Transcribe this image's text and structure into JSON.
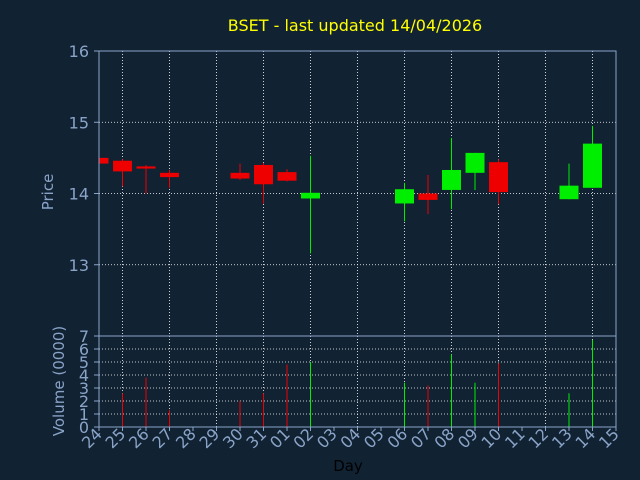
{
  "chart_data": {
    "type": "candlestick",
    "title": "BSET - last updated 14/04/2026",
    "price_panel": {
      "ylabel": "Price",
      "ylim": [
        12.0,
        16.0
      ],
      "yticks": [
        "13",
        "14",
        "15",
        "16"
      ],
      "grid": true
    },
    "volume_panel": {
      "ylabel": "Volume (0000)",
      "ylim": [
        0,
        7
      ],
      "yticks": [
        "0",
        "1",
        "2",
        "3",
        "4",
        "5",
        "6",
        "7"
      ],
      "grid": true
    },
    "xlabel": "Day",
    "x_ticks": [
      "24",
      "25",
      "26",
      "27",
      "28",
      "29",
      "30",
      "31",
      "01",
      "02",
      "03",
      "04",
      "05",
      "06",
      "07",
      "08",
      "09",
      "10",
      "11",
      "12",
      "13",
      "14",
      "15"
    ],
    "candles": [
      {
        "day": "24",
        "open": 14.5,
        "high": 14.52,
        "low": 14.42,
        "close": 14.42,
        "volume": 0
      },
      {
        "day": "25",
        "open": 14.46,
        "high": 14.48,
        "low": 14.1,
        "close": 14.31,
        "volume": 2.6
      },
      {
        "day": "26",
        "open": 14.38,
        "high": 14.4,
        "low": 14.0,
        "close": 14.35,
        "volume": 3.8
      },
      {
        "day": "27",
        "open": 14.29,
        "high": 14.33,
        "low": 14.08,
        "close": 14.23,
        "volume": 1.3
      },
      {
        "day": "30",
        "open": 14.29,
        "high": 14.42,
        "low": 14.19,
        "close": 14.21,
        "volume": 2.0
      },
      {
        "day": "31",
        "open": 14.4,
        "high": 14.43,
        "low": 13.86,
        "close": 14.13,
        "volume": 2.6
      },
      {
        "day": "01",
        "open": 14.3,
        "high": 14.34,
        "low": 14.17,
        "close": 14.18,
        "volume": 4.8
      },
      {
        "day": "02",
        "open": 13.93,
        "high": 14.53,
        "low": 13.16,
        "close": 14.01,
        "volume": 5.0
      },
      {
        "day": "06",
        "open": 13.86,
        "high": 14.15,
        "low": 13.61,
        "close": 14.06,
        "volume": 3.4
      },
      {
        "day": "07",
        "open": 14.0,
        "high": 14.26,
        "low": 13.71,
        "close": 13.91,
        "volume": 3.2
      },
      {
        "day": "08",
        "open": 14.05,
        "high": 14.78,
        "low": 13.78,
        "close": 14.33,
        "volume": 5.6
      },
      {
        "day": "09",
        "open": 14.29,
        "high": 14.57,
        "low": 14.05,
        "close": 14.57,
        "volume": 3.4
      },
      {
        "day": "10",
        "open": 14.44,
        "high": 14.48,
        "low": 13.85,
        "close": 14.02,
        "volume": 4.9
      },
      {
        "day": "13",
        "open": 13.92,
        "high": 14.42,
        "low": 13.92,
        "close": 14.11,
        "volume": 2.6
      },
      {
        "day": "14",
        "open": 14.08,
        "high": 14.95,
        "low": 14.08,
        "close": 14.7,
        "volume": 6.7
      }
    ]
  }
}
